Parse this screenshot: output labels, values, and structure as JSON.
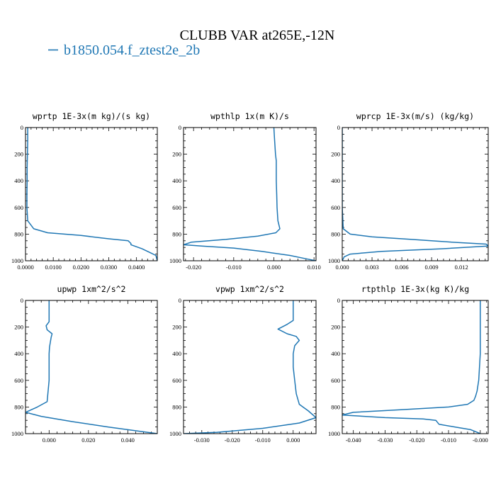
{
  "figure": {
    "title": "CLUBB VAR at265E,-12N",
    "legend": "b1850.054.f_ztest2e_2b",
    "line_color": "#1f77b4"
  },
  "chart_data": [
    {
      "type": "line",
      "title": "wprtp  1E-3x(m kg)/(s kg)",
      "xlim": [
        0,
        0.0475
      ],
      "ylim": [
        1000,
        0
      ],
      "xticks": [
        0,
        0.01,
        0.02,
        0.03,
        0.04
      ],
      "xticklabels": [
        "0.0000",
        "0.0100",
        "0.0200",
        "0.0300",
        "0.0400"
      ],
      "yticks": [
        0,
        200,
        400,
        600,
        800,
        1000
      ],
      "yticklabels": [
        "0",
        "200",
        "400",
        "600",
        "800",
        "1000"
      ],
      "series": [
        {
          "x": [
            0.0008,
            0.0008,
            0.0007,
            0.0006,
            0.0006,
            0.0005,
            0.0005,
            0.0008,
            0.003,
            0.008,
            0.02,
            0.03,
            0.037,
            0.038,
            0.038,
            0.042,
            0.045,
            0.047,
            0.0475
          ],
          "y": [
            0,
            100,
            200,
            300,
            400,
            500,
            600,
            700,
            760,
            790,
            810,
            835,
            850,
            870,
            880,
            910,
            940,
            960,
            1000
          ]
        }
      ]
    },
    {
      "type": "line",
      "title": "wpthlp  1x(m K)/s",
      "xlim": [
        -0.0225,
        0.0105
      ],
      "ylim": [
        1000,
        0
      ],
      "xticks": [
        -0.02,
        -0.01,
        0.0,
        0.01
      ],
      "xticklabels": [
        "-0.020",
        "-0.010",
        "0.000",
        "0.010"
      ],
      "yticks": [
        0,
        200,
        400,
        600,
        800,
        1000
      ],
      "yticklabels": [
        "0",
        "200",
        "400",
        "600",
        "800",
        "1000"
      ],
      "series": [
        {
          "x": [
            0.0,
            0.0002,
            0.0004,
            0.0006,
            0.0006,
            0.0006,
            0.0007,
            0.0008,
            0.001,
            0.0015,
            0.0005,
            -0.004,
            -0.012,
            -0.0205,
            -0.0225,
            -0.018,
            -0.01,
            -0.003,
            0.004,
            0.008,
            0.0105
          ],
          "y": [
            0,
            100,
            200,
            250,
            300,
            400,
            500,
            600,
            700,
            760,
            790,
            815,
            840,
            860,
            880,
            890,
            905,
            930,
            960,
            985,
            1000
          ]
        }
      ]
    },
    {
      "type": "line",
      "title": "wprcp  1E-3x(m/s) (kg/kg)",
      "xlim": [
        0,
        0.0147
      ],
      "ylim": [
        1000,
        0
      ],
      "xticks": [
        0,
        0.003,
        0.006,
        0.009,
        0.012
      ],
      "xticklabels": [
        "0.000",
        "0.003",
        "0.006",
        "0.009",
        "0.012"
      ],
      "yticks": [
        0,
        200,
        400,
        600,
        800,
        1000
      ],
      "yticklabels": [
        "0",
        "200",
        "400",
        "600",
        "800",
        "1000"
      ],
      "series": [
        {
          "x": [
            0,
            0,
            0,
            0,
            0.0001,
            0.0008,
            0.003,
            0.007,
            0.011,
            0.0145,
            0.0147,
            0.01,
            0.004,
            0.0008,
            0.0002,
            0
          ],
          "y": [
            0,
            200,
            400,
            600,
            760,
            800,
            820,
            840,
            860,
            875,
            890,
            910,
            930,
            950,
            970,
            1000
          ]
        }
      ]
    },
    {
      "type": "line",
      "title": "upwp  1xm^2/s^2",
      "xlim": [
        -0.012,
        0.055
      ],
      "ylim": [
        1000,
        0
      ],
      "xticks": [
        0,
        0.02,
        0.04
      ],
      "xticklabels": [
        "0.000",
        "0.020",
        "0.040"
      ],
      "yticks": [
        0,
        200,
        400,
        600,
        800,
        1000
      ],
      "yticklabels": [
        "0",
        "200",
        "400",
        "600",
        "800",
        "1000"
      ],
      "series": [
        {
          "x": [
            0.0,
            0.0,
            0.0,
            -0.0015,
            -0.001,
            0.0015,
            0.001,
            0.0002,
            0.0,
            0.0,
            0.0,
            -0.001,
            -0.006,
            -0.012,
            -0.004,
            0.012,
            0.03,
            0.045,
            0.055
          ],
          "y": [
            0,
            100,
            160,
            190,
            220,
            250,
            280,
            350,
            400,
            500,
            600,
            760,
            800,
            840,
            870,
            910,
            950,
            980,
            1000
          ]
        }
      ]
    },
    {
      "type": "line",
      "title": "vpwp  1xm^2/s^2",
      "xlim": [
        -0.036,
        0.0075
      ],
      "ylim": [
        1000,
        0
      ],
      "xticks": [
        -0.03,
        -0.02,
        -0.01,
        0.0
      ],
      "xticklabels": [
        "-0.030",
        "-0.020",
        "-0.010",
        "0.000"
      ],
      "yticks": [
        0,
        200,
        400,
        600,
        800,
        1000
      ],
      "yticklabels": [
        "0",
        "200",
        "400",
        "600",
        "800",
        "1000"
      ],
      "series": [
        {
          "x": [
            0.0,
            0.0,
            0.0,
            -0.002,
            -0.005,
            -0.002,
            0.001,
            0.002,
            0.0005,
            0.0,
            0.0,
            0.0005,
            0.001,
            0.002,
            0.005,
            0.0075,
            0.002,
            -0.01,
            -0.025,
            -0.036
          ],
          "y": [
            0,
            100,
            150,
            180,
            215,
            250,
            270,
            300,
            340,
            400,
            500,
            600,
            700,
            780,
            830,
            880,
            920,
            960,
            990,
            1000
          ]
        }
      ]
    },
    {
      "type": "line",
      "title": "rtpthlp  1E-3x(kg K)/kg",
      "xlim": [
        -0.0435,
        0.0025
      ],
      "ylim": [
        1000,
        0
      ],
      "xticks": [
        -0.04,
        -0.03,
        -0.02,
        -0.01,
        0.0
      ],
      "xticklabels": [
        "-0.040",
        "-0.030",
        "-0.020",
        "-0.010",
        "-0.000"
      ],
      "yticks": [
        0,
        200,
        400,
        600,
        800,
        1000
      ],
      "yticklabels": [
        "0",
        "200",
        "400",
        "600",
        "800",
        "1000"
      ],
      "series": [
        {
          "x": [
            0.0,
            0.0,
            0.0,
            -0.0005,
            -0.001,
            -0.0015,
            -0.002,
            -0.004,
            -0.01,
            -0.025,
            -0.04,
            -0.0435,
            -0.03,
            -0.018,
            -0.014,
            -0.013,
            -0.008,
            -0.003,
            -0.001,
            0.0
          ],
          "y": [
            0,
            200,
            400,
            600,
            680,
            720,
            750,
            780,
            800,
            820,
            840,
            860,
            880,
            890,
            900,
            930,
            950,
            970,
            990,
            1000
          ]
        }
      ]
    }
  ]
}
